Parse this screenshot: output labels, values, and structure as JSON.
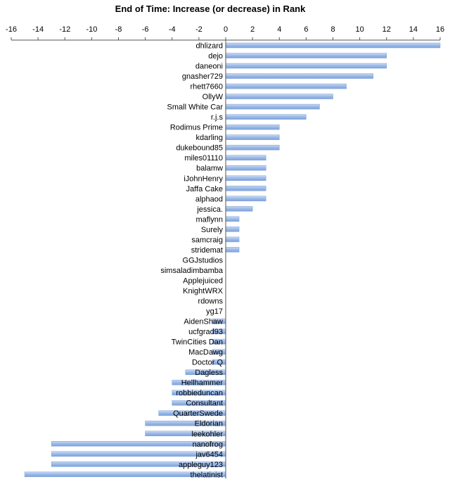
{
  "chart_data": {
    "type": "bar",
    "orientation": "horizontal",
    "title": "End of Time: Increase (or decrease) in Rank",
    "xlabel": "",
    "ylabel": "",
    "xlim": [
      -16,
      16
    ],
    "x_ticks": [
      -16,
      -14,
      -12,
      -10,
      -8,
      -6,
      -4,
      -2,
      0,
      2,
      4,
      6,
      8,
      10,
      12,
      14,
      16
    ],
    "x_axis_position": "top",
    "grid": false,
    "legend": "none",
    "bar_color": "#a9c3ea",
    "categories": [
      "dhlizard",
      "dejo",
      "daneoni",
      "gnasher729",
      "rhett7660",
      "OllyW",
      "Small White Car",
      "r.j.s",
      "Rodimus Prime",
      "kdarling",
      "dukebound85",
      "miles01110",
      "balamw",
      "iJohnHenry",
      "Jaffa Cake",
      "alphaod",
      "jessica.",
      "maflynn",
      "Surely",
      "samcraig",
      "stridemat",
      "GGJstudios",
      "simsaladimbamba",
      "Applejuiced",
      "KnightWRX",
      "rdowns",
      "yg17",
      "AidenShaw",
      "ucfgrad93",
      "TwinCities Dan",
      "MacDawg",
      "Doctor Q",
      "Dagless",
      "Hellhammer",
      "robbieduncan",
      "Consultant",
      "QuarterSwede",
      "Eldorian",
      "leekohler",
      "nanofrog",
      "jav6454",
      "appleguy123",
      "thelatinist"
    ],
    "values": [
      16,
      12,
      12,
      11,
      9,
      8,
      7,
      6,
      4,
      4,
      4,
      3,
      3,
      3,
      3,
      3,
      2,
      1,
      1,
      1,
      1,
      0,
      0,
      0,
      0,
      0,
      0,
      -1,
      -1,
      -1,
      -1,
      -1,
      -3,
      -4,
      -4,
      -4,
      -5,
      -6,
      -6,
      -13,
      -13,
      -13,
      -15
    ]
  }
}
